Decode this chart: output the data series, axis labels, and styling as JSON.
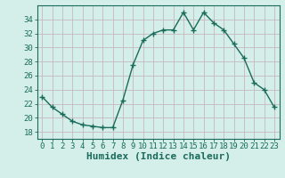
{
  "x": [
    0,
    1,
    2,
    3,
    4,
    5,
    6,
    7,
    8,
    9,
    10,
    11,
    12,
    13,
    14,
    15,
    16,
    17,
    18,
    19,
    20,
    21,
    22,
    23
  ],
  "y": [
    23,
    21.5,
    20.5,
    19.5,
    19,
    18.8,
    18.6,
    18.6,
    22.5,
    27.5,
    31,
    32,
    32.5,
    32.5,
    35,
    32.5,
    35,
    33.5,
    32.5,
    30.5,
    28.5,
    25,
    24,
    21.5
  ],
  "line_color": "#1a6b5a",
  "marker": "D",
  "marker_size": 2.5,
  "background_color": "#d4eeea",
  "grid_color": "#c8b8c0",
  "xlabel": "Humidex (Indice chaleur)",
  "ylim": [
    17,
    36
  ],
  "xlim": [
    -0.5,
    23.5
  ],
  "yticks": [
    18,
    20,
    22,
    24,
    26,
    28,
    30,
    32,
    34
  ],
  "xticks": [
    0,
    1,
    2,
    3,
    4,
    5,
    6,
    7,
    8,
    9,
    10,
    11,
    12,
    13,
    14,
    15,
    16,
    17,
    18,
    19,
    20,
    21,
    22,
    23
  ],
  "tick_label_fontsize": 6.5,
  "xlabel_fontsize": 8,
  "tick_color": "#1a6b5a",
  "axis_color": "#1a6b5a",
  "linewidth": 1.0
}
